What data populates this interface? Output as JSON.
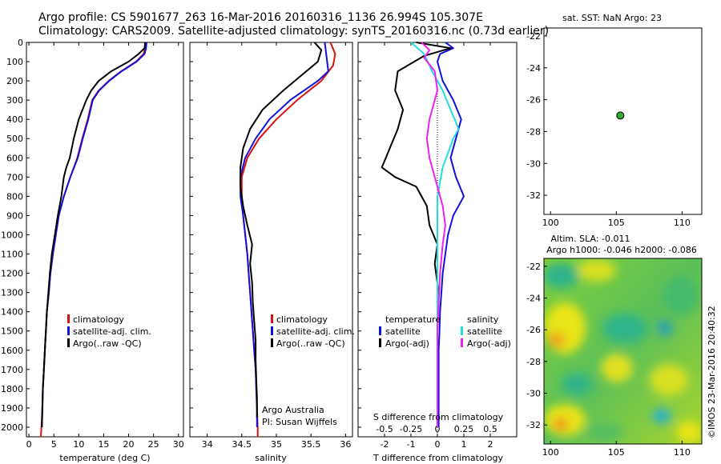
{
  "header": {
    "line1": "Argo profile: CS 5901677_263 16-Mar-2016 20160316_1136 26.994S 105.307E",
    "line2": "Climatology: CARS2009. Satellite-adjusted climatology: synTS_20160316.nc (0.73d earlier)"
  },
  "colors": {
    "clim": "#dd1111",
    "sat": "#1111dd",
    "argo": "#000000",
    "sat_s": "#22dddd",
    "argo_s": "#ee22ee",
    "marker": "#33aa33"
  },
  "chart_data": [
    {
      "id": "temperature",
      "type": "line",
      "xlabel": "temperature (deg C)",
      "ylabel": "",
      "xlim": [
        -0.5,
        31
      ],
      "ylim": [
        0,
        2050
      ],
      "x_ticks": [
        0,
        5,
        10,
        15,
        20,
        25,
        30
      ],
      "y_ticks": [
        0,
        100,
        200,
        300,
        400,
        500,
        600,
        700,
        800,
        900,
        1000,
        1100,
        1200,
        1300,
        1400,
        1500,
        1600,
        1700,
        1800,
        1900,
        2000
      ],
      "legend": [
        "climatology",
        "satellite-adj. clim.",
        "Argo(..raw -QC)"
      ],
      "series": [
        {
          "name": "climatology",
          "color_key": "clim",
          "points": [
            [
              23.4,
              0
            ],
            [
              23.3,
              30
            ],
            [
              23.0,
              60
            ],
            [
              21.5,
              100
            ],
            [
              18.5,
              150
            ],
            [
              16.0,
              200
            ],
            [
              14.0,
              250
            ],
            [
              12.7,
              300
            ],
            [
              11.8,
              400
            ],
            [
              10.7,
              500
            ],
            [
              9.7,
              600
            ],
            [
              8.3,
              700
            ],
            [
              7.0,
              800
            ],
            [
              6.0,
              900
            ],
            [
              5.4,
              1000
            ],
            [
              4.8,
              1100
            ],
            [
              4.3,
              1200
            ],
            [
              4.0,
              1300
            ],
            [
              3.6,
              1400
            ],
            [
              3.4,
              1500
            ],
            [
              3.2,
              1600
            ],
            [
              3.0,
              1700
            ],
            [
              2.8,
              1800
            ],
            [
              2.7,
              1900
            ],
            [
              2.5,
              2000
            ],
            [
              2.4,
              2050
            ]
          ]
        },
        {
          "name": "satellite-adj. clim.",
          "color_key": "sat",
          "points": [
            [
              23.6,
              0
            ],
            [
              23.5,
              30
            ],
            [
              23.2,
              60
            ],
            [
              21.6,
              100
            ],
            [
              18.6,
              150
            ],
            [
              16.1,
              200
            ],
            [
              14.1,
              250
            ],
            [
              12.8,
              300
            ],
            [
              11.9,
              400
            ],
            [
              10.8,
              500
            ],
            [
              9.8,
              600
            ],
            [
              8.3,
              700
            ],
            [
              7.0,
              800
            ],
            [
              6.0,
              900
            ],
            [
              5.4,
              1000
            ],
            [
              4.8,
              1100
            ],
            [
              4.3,
              1200
            ],
            [
              4.0,
              1300
            ],
            [
              3.6,
              1400
            ],
            [
              3.4,
              1500
            ],
            [
              3.2,
              1600
            ],
            [
              3.0,
              1700
            ],
            [
              2.8,
              1800
            ],
            [
              2.7,
              1900
            ],
            [
              2.6,
              2000
            ]
          ]
        },
        {
          "name": "Argo(..raw -QC)",
          "color_key": "argo",
          "points": [
            [
              23.3,
              0
            ],
            [
              23.2,
              30
            ],
            [
              22.0,
              60
            ],
            [
              20.0,
              100
            ],
            [
              16.5,
              150
            ],
            [
              14.0,
              200
            ],
            [
              12.5,
              250
            ],
            [
              11.5,
              300
            ],
            [
              10.0,
              400
            ],
            [
              9.0,
              500
            ],
            [
              8.2,
              600
            ],
            [
              7.5,
              650
            ],
            [
              7.0,
              700
            ],
            [
              6.5,
              800
            ],
            [
              5.8,
              900
            ],
            [
              5.2,
              1000
            ],
            [
              4.6,
              1100
            ],
            [
              4.2,
              1200
            ],
            [
              3.9,
              1300
            ],
            [
              3.6,
              1400
            ],
            [
              3.4,
              1500
            ],
            [
              3.2,
              1600
            ],
            [
              3.0,
              1700
            ],
            [
              2.8,
              1800
            ],
            [
              2.7,
              1900
            ],
            [
              2.6,
              2000
            ]
          ]
        }
      ]
    },
    {
      "id": "salinity",
      "type": "line",
      "xlabel": "salinity",
      "xlim": [
        33.75,
        36.1
      ],
      "ylim": [
        0,
        2050
      ],
      "x_ticks": [
        34,
        34.5,
        35,
        35.5,
        36
      ],
      "legend": [
        "climatology",
        "satellite-adj. clim.",
        "Argo(..raw -QC)"
      ],
      "annotation": [
        "Argo Australia",
        "PI: Susan Wijffels"
      ],
      "series": [
        {
          "name": "climatology",
          "color_key": "clim",
          "points": [
            [
              35.78,
              0
            ],
            [
              35.85,
              60
            ],
            [
              35.82,
              120
            ],
            [
              35.65,
              200
            ],
            [
              35.3,
              300
            ],
            [
              35.0,
              400
            ],
            [
              34.75,
              500
            ],
            [
              34.58,
              600
            ],
            [
              34.5,
              700
            ],
            [
              34.5,
              800
            ],
            [
              34.52,
              900
            ],
            [
              34.55,
              1000
            ],
            [
              34.58,
              1100
            ],
            [
              34.6,
              1200
            ],
            [
              34.62,
              1300
            ],
            [
              34.64,
              1400
            ],
            [
              34.66,
              1500
            ],
            [
              34.68,
              1600
            ],
            [
              34.7,
              1700
            ],
            [
              34.71,
              1800
            ],
            [
              34.72,
              1900
            ],
            [
              34.73,
              2000
            ],
            [
              34.73,
              2050
            ]
          ]
        },
        {
          "name": "satellite-adj. clim.",
          "color_key": "sat",
          "points": [
            [
              35.7,
              0
            ],
            [
              35.72,
              60
            ],
            [
              35.75,
              150
            ],
            [
              35.6,
              200
            ],
            [
              35.2,
              300
            ],
            [
              34.9,
              400
            ],
            [
              34.7,
              500
            ],
            [
              34.55,
              600
            ],
            [
              34.48,
              700
            ],
            [
              34.48,
              800
            ],
            [
              34.52,
              900
            ],
            [
              34.55,
              1000
            ],
            [
              34.58,
              1100
            ],
            [
              34.6,
              1200
            ],
            [
              34.62,
              1300
            ],
            [
              34.64,
              1400
            ],
            [
              34.66,
              1500
            ],
            [
              34.68,
              1600
            ],
            [
              34.7,
              1700
            ],
            [
              34.71,
              1800
            ],
            [
              34.72,
              1900
            ],
            [
              34.72,
              2000
            ]
          ]
        },
        {
          "name": "Argo(..raw -QC)",
          "color_key": "argo",
          "points": [
            [
              35.55,
              0
            ],
            [
              35.65,
              40
            ],
            [
              35.6,
              100
            ],
            [
              35.4,
              160
            ],
            [
              35.1,
              250
            ],
            [
              34.8,
              350
            ],
            [
              34.62,
              450
            ],
            [
              34.52,
              550
            ],
            [
              34.48,
              650
            ],
            [
              34.48,
              750
            ],
            [
              34.52,
              850
            ],
            [
              34.58,
              950
            ],
            [
              34.65,
              1050
            ],
            [
              34.62,
              1150
            ],
            [
              34.65,
              1250
            ],
            [
              34.66,
              1350
            ],
            [
              34.68,
              1450
            ],
            [
              34.7,
              1550
            ],
            [
              34.7,
              1650
            ],
            [
              34.71,
              1750
            ],
            [
              34.72,
              1850
            ],
            [
              34.72,
              1950
            ]
          ]
        }
      ]
    },
    {
      "id": "difference",
      "type": "line",
      "xlabel": "T difference from climatology",
      "xlabel_top": "S difference from climatology",
      "xlim": [
        -3,
        3
      ],
      "ylim": [
        0,
        2050
      ],
      "x_ticks": [
        -2,
        -1,
        0,
        1,
        2
      ],
      "x_ticks_S": [
        "-0.5",
        "-0.25",
        "0",
        "0.25",
        "0.5"
      ],
      "legend_titles": [
        "temperature",
        "salinity"
      ],
      "legend": [
        "satellite",
        "Argo(-adj)",
        "satellite",
        "Argo(-adj)"
      ],
      "series": [
        {
          "name": "temperature satellite",
          "color_key": "sat",
          "points": [
            [
              0.3,
              0
            ],
            [
              0.6,
              30
            ],
            [
              0.1,
              60
            ],
            [
              0.0,
              100
            ],
            [
              0.2,
              200
            ],
            [
              0.6,
              300
            ],
            [
              0.9,
              400
            ],
            [
              0.7,
              500
            ],
            [
              0.5,
              600
            ],
            [
              0.7,
              700
            ],
            [
              1.0,
              800
            ],
            [
              0.6,
              900
            ],
            [
              0.4,
              1000
            ],
            [
              0.3,
              1100
            ],
            [
              0.2,
              1200
            ],
            [
              0.15,
              1300
            ],
            [
              0.1,
              1400
            ],
            [
              0.08,
              1500
            ],
            [
              0.05,
              1600
            ],
            [
              0.05,
              1700
            ],
            [
              0.05,
              1800
            ],
            [
              0.05,
              1900
            ],
            [
              0.05,
              2000
            ]
          ]
        },
        {
          "name": "temperature Argo(-adj)",
          "color_key": "argo",
          "points": [
            [
              -0.8,
              0
            ],
            [
              0.5,
              30
            ],
            [
              -0.5,
              70
            ],
            [
              -1.5,
              150
            ],
            [
              -1.6,
              250
            ],
            [
              -1.3,
              350
            ],
            [
              -1.5,
              450
            ],
            [
              -1.8,
              550
            ],
            [
              -2.1,
              650
            ],
            [
              -1.6,
              700
            ],
            [
              -0.8,
              750
            ],
            [
              -0.4,
              850
            ],
            [
              -0.3,
              950
            ],
            [
              0.0,
              1050
            ],
            [
              -0.1,
              1150
            ],
            [
              0.0,
              1250
            ],
            [
              0.05,
              1350
            ],
            [
              0.0,
              1450
            ],
            [
              0.0,
              1550
            ],
            [
              0.0,
              1650
            ],
            [
              0.0,
              1750
            ],
            [
              0.0,
              1850
            ],
            [
              0.0,
              1950
            ]
          ]
        },
        {
          "name": "salinity satellite",
          "color_key": "sat_s",
          "points": [
            [
              -1.0,
              0
            ],
            [
              -0.5,
              60
            ],
            [
              -0.2,
              150
            ],
            [
              0.2,
              250
            ],
            [
              0.5,
              350
            ],
            [
              0.8,
              450
            ],
            [
              0.6,
              500
            ],
            [
              0.2,
              650
            ],
            [
              0.0,
              800
            ],
            [
              0.0,
              1000
            ],
            [
              0.0,
              1200
            ],
            [
              0.0,
              1400
            ],
            [
              0.0,
              1600
            ],
            [
              0.0,
              1800
            ],
            [
              0.0,
              2000
            ]
          ]
        },
        {
          "name": "salinity Argo(-adj)",
          "color_key": "argo_s",
          "points": [
            [
              -0.6,
              0
            ],
            [
              -0.3,
              40
            ],
            [
              -0.5,
              80
            ],
            [
              -0.1,
              150
            ],
            [
              0.0,
              250
            ],
            [
              -0.3,
              400
            ],
            [
              -0.4,
              500
            ],
            [
              -0.3,
              600
            ],
            [
              -0.1,
              700
            ],
            [
              0.2,
              850
            ],
            [
              0.3,
              950
            ],
            [
              0.2,
              1050
            ],
            [
              0.1,
              1200
            ],
            [
              0.05,
              1350
            ],
            [
              0.0,
              1500
            ],
            [
              0.0,
              1700
            ],
            [
              0.0,
              1900
            ],
            [
              0.0,
              2000
            ]
          ]
        }
      ]
    },
    {
      "id": "sst_map",
      "type": "scatter",
      "title": "sat. SST: NaN Argo: 23",
      "xlim": [
        99.5,
        111.5
      ],
      "ylim": [
        -33.2,
        -21.5
      ],
      "x_ticks": [
        100,
        105,
        110
      ],
      "y_ticks": [
        -22,
        -24,
        -26,
        -28,
        -30,
        -32
      ],
      "points": [
        [
          105.307,
          -26.994
        ]
      ]
    },
    {
      "id": "sla_map",
      "type": "heatmap",
      "title": "Altim. SLA: -0.011",
      "subtitle": "Argo h1000: -0.046 h2000: -0.086",
      "xlim": [
        99.5,
        111.5
      ],
      "ylim": [
        -33.2,
        -21.5
      ],
      "x_ticks": [
        100,
        105,
        110
      ],
      "y_ticks": [
        -22,
        -24,
        -26,
        -28,
        -30,
        -32
      ],
      "side_label": "©IMOS 23-Mar-2016 20:40:32"
    }
  ]
}
